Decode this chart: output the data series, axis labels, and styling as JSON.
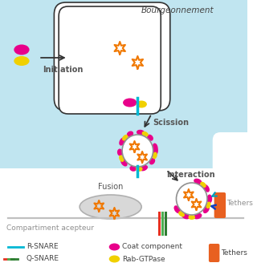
{
  "bg_color_top": "#c5e8f0",
  "bg_color_bottom": "#ffffff",
  "title_text": "Bourgeonnement",
  "compartment_text": "Compartiment acepteur",
  "labels": {
    "initiation": "Initiation",
    "scission": "Scission",
    "interaction": "Interaction",
    "fusion": "Fusion",
    "tethers": "Tethers"
  },
  "legend": {
    "r_snare": "R-SNARE",
    "q_snare": "Q-SNARE",
    "coat": "Coat component",
    "rab": "Rab-GTPase",
    "tethers": "Tethers"
  },
  "colors": {
    "magenta": "#e8008a",
    "yellow": "#f0d000",
    "cyan": "#00b8d4",
    "orange_star": "#f07800",
    "orange_tether": "#e86020",
    "green1": "#4caf50",
    "green2": "#2e7d32",
    "red_snare": "#e83020",
    "gray": "#909090",
    "light_gray": "#b0b0b0",
    "bg_blue": "#c0e5f0",
    "bg_white": "#ffffff",
    "arrow_dark": "#333333",
    "blue_arrow": "#1040c0",
    "cyan_arrow": "#00a0c0"
  }
}
